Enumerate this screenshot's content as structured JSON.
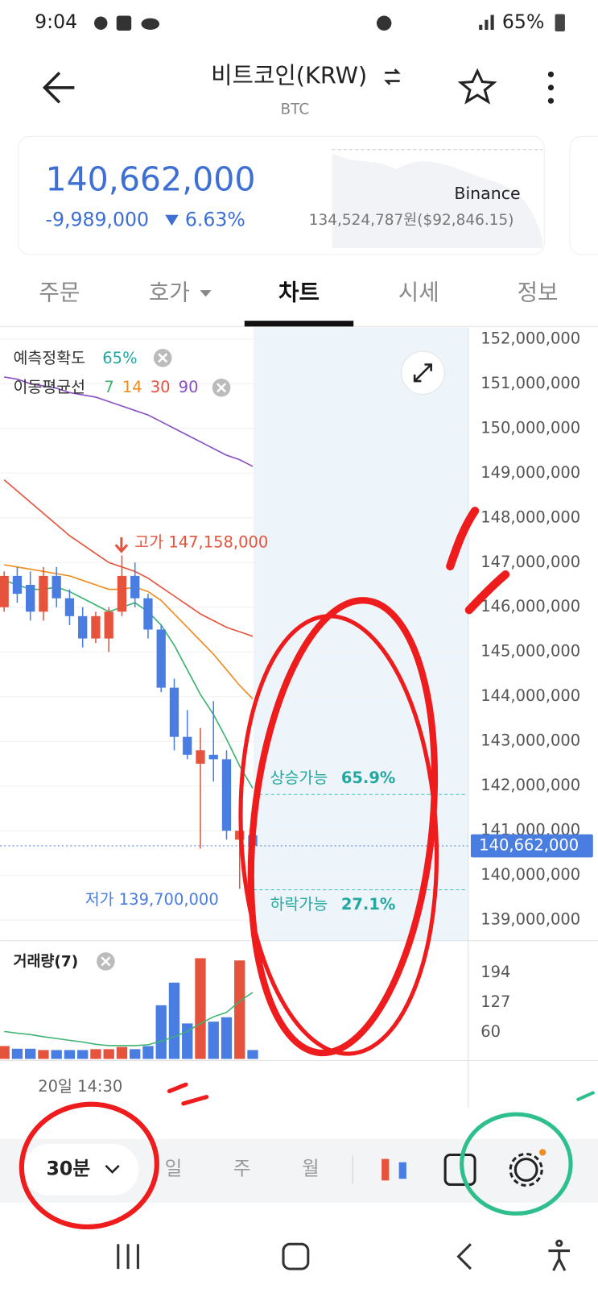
{
  "status_bar": {
    "time": "9:04",
    "battery": "65%"
  },
  "header": {
    "title": "비트코인(KRW)",
    "subtitle": "BTC"
  },
  "price_card": {
    "price": "140,662,000",
    "change": "-9,989,000",
    "change_rate": "6.63%",
    "exchange": "Binance",
    "exchange_price": "134,524,787원($92,846.15)"
  },
  "tabs": [
    "주문",
    "호가",
    "차트",
    "시세",
    "정보"
  ],
  "chart_data": {
    "type": "candlestick",
    "indicators": {
      "accuracy_label": "예측정확도",
      "accuracy": "65%",
      "ma_label": "이동평균선"
    },
    "up_color": "#e5533d",
    "down_color": "#4a7de2",
    "open": [
      146000000,
      146700000,
      146500000,
      145900000,
      146700000,
      146200000,
      145800000,
      145300000,
      145300000,
      145900000,
      146700000,
      146200000,
      145500000,
      144200000,
      143100000,
      142500000,
      142700000,
      142600000,
      140800000,
      140900000
    ],
    "high": [
      146800000,
      146900000,
      146800000,
      146900000,
      146900000,
      146400000,
      146000000,
      145900000,
      146000000,
      147158000,
      147000000,
      146300000,
      145600000,
      144400000,
      143700000,
      143300000,
      143900000,
      142800000,
      141300000,
      141100000
    ],
    "low": [
      145900000,
      146100000,
      145700000,
      145700000,
      146000000,
      145600000,
      145100000,
      145200000,
      145000000,
      145800000,
      146000000,
      145300000,
      144100000,
      142800000,
      142600000,
      140600000,
      142100000,
      140800000,
      139700000,
      140500000
    ],
    "close": [
      146700000,
      146300000,
      145900000,
      146700000,
      146200000,
      145800000,
      145300000,
      145800000,
      145900000,
      146700000,
      146200000,
      145500000,
      144200000,
      143100000,
      142700000,
      142800000,
      142600000,
      141000000,
      141000000,
      140662000
    ],
    "series": [
      {
        "name": "7",
        "color": "#3cb371",
        "values": [
          146600000,
          146500000,
          146400000,
          146400000,
          146450000,
          146350000,
          146200000,
          146050000,
          145900000,
          146000000,
          146100000,
          145900000,
          145600000,
          145150000,
          144600000,
          144050000,
          143600000,
          143050000,
          142450000,
          141950000
        ]
      },
      {
        "name": "14",
        "color": "#f08c1e",
        "values": [
          146950000,
          146900000,
          146850000,
          146800000,
          146750000,
          146700000,
          146600000,
          146500000,
          146400000,
          146400000,
          146450000,
          146350000,
          146150000,
          145850000,
          145550000,
          145250000,
          144950000,
          144600000,
          144250000,
          143950000
        ]
      },
      {
        "name": "30",
        "color": "#e5533d",
        "values": [
          148850000,
          148600000,
          148350000,
          148100000,
          147850000,
          147600000,
          147400000,
          147200000,
          147000000,
          146900000,
          146800000,
          146650000,
          146450000,
          146250000,
          146050000,
          145850000,
          145700000,
          145550000,
          145450000,
          145350000
        ]
      },
      {
        "name": "90",
        "color": "#8a4fc4",
        "values": [
          151150000,
          151100000,
          151000000,
          150950000,
          150900000,
          150800000,
          150750000,
          150700000,
          150600000,
          150500000,
          150400000,
          150300000,
          150150000,
          150000000,
          149850000,
          149700000,
          149550000,
          149400000,
          149300000,
          149150000
        ]
      }
    ],
    "ylim": [
      138540000,
      152260000
    ],
    "yticks": [
      {
        "value": 152000000,
        "label": "152,000,000"
      },
      {
        "value": 151000000,
        "label": "151,000,000"
      },
      {
        "value": 150000000,
        "label": "150,000,000"
      },
      {
        "value": 149000000,
        "label": "149,000,000"
      },
      {
        "value": 148000000,
        "label": "148,000,000"
      },
      {
        "value": 147000000,
        "label": "147,000,000"
      },
      {
        "value": 146000000,
        "label": "146,000,000"
      },
      {
        "value": 145000000,
        "label": "145,000,000"
      },
      {
        "value": 144000000,
        "label": "144,000,000"
      },
      {
        "value": 143000000,
        "label": "143,000,000"
      },
      {
        "value": 142000000,
        "label": "142,000,000"
      },
      {
        "value": 141000000,
        "label": "141,000,000"
      },
      {
        "value": 140000000,
        "label": "140,000,000"
      },
      {
        "value": 139000000,
        "label": "139,000,000"
      }
    ],
    "grid": true,
    "high_label": "고가 147,158,000",
    "low_label": "저가 139,700,000",
    "current_price": {
      "value": 140662000,
      "label": "140,662,000"
    },
    "forecast": {
      "up_label": "상승가능",
      "up_prob": "65.9%",
      "up_level": 141810000,
      "down_label": "하락가능",
      "down_prob": "27.1%",
      "down_level": 139680000
    },
    "volume": {
      "title": "거래량(7)",
      "values": [
        29,
        23,
        23,
        20,
        20,
        20,
        20,
        22,
        22,
        27,
        22,
        29,
        121,
        172,
        80,
        227,
        84,
        94,
        222,
        20
      ],
      "ma": [
        62,
        58,
        55,
        50,
        46,
        42,
        38,
        33,
        30,
        30,
        30,
        32,
        40,
        50,
        62,
        80,
        95,
        105,
        130,
        150
      ],
      "ma_color": "#3cb371",
      "ylim": [
        0,
        259
      ],
      "yticks": [
        194,
        127,
        60
      ]
    },
    "x_label": "20일 14:30"
  },
  "toolbar": {
    "interval": "30분",
    "periods": [
      "일",
      "주",
      "월"
    ]
  }
}
